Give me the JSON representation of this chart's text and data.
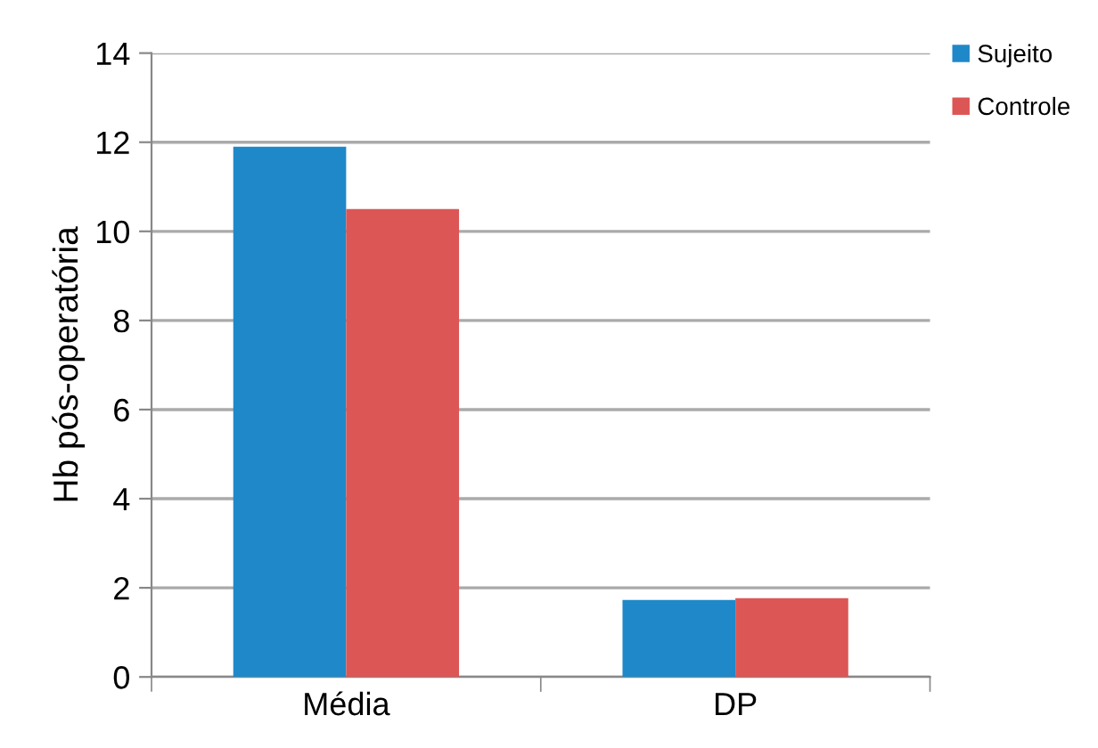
{
  "chart_data": {
    "type": "bar",
    "ylabel": "Hb pós-operatória",
    "categories": [
      "Média",
      "DP"
    ],
    "series": [
      {
        "name": "Sujeito",
        "color": "#1f88c8",
        "values": [
          11.9,
          1.73
        ]
      },
      {
        "name": "Controle",
        "color": "#dc5656",
        "values": [
          10.5,
          1.77
        ]
      }
    ],
    "ylim": [
      0,
      14
    ],
    "yticks": [
      0,
      2,
      4,
      6,
      8,
      10,
      12,
      14
    ],
    "grid": "y",
    "legend": "top right"
  }
}
